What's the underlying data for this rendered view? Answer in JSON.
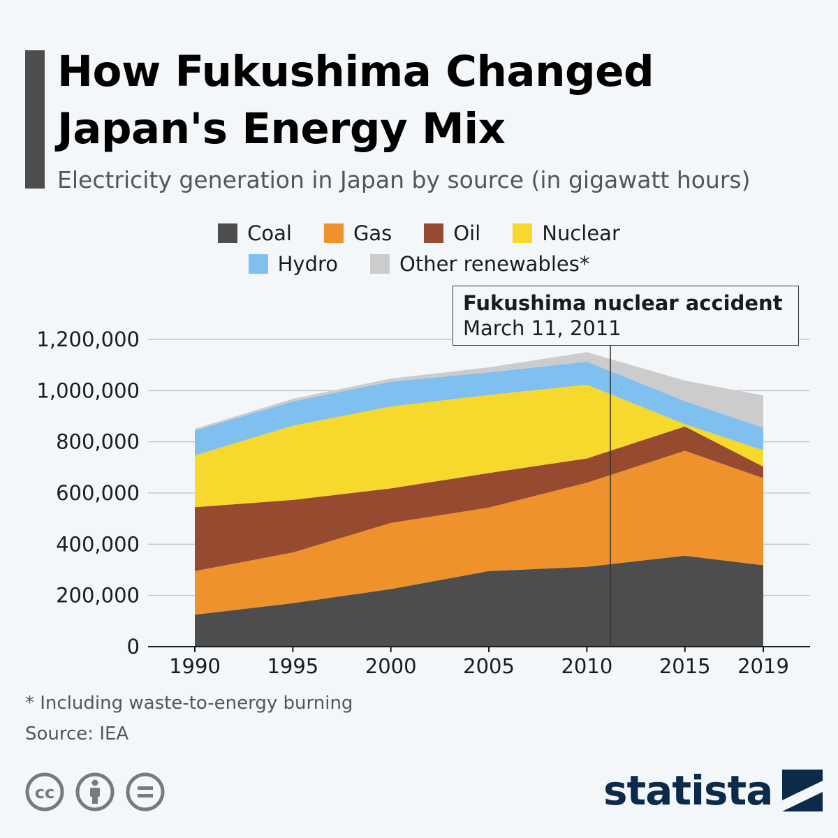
{
  "header": {
    "title_line1": "How Fukushima Changed",
    "title_line2": "Japan's Energy Mix",
    "subtitle": "Electricity generation in Japan by source (in gigawatt hours)"
  },
  "legend": {
    "row1": [
      {
        "label": "Coal",
        "color": "#4d4d4d"
      },
      {
        "label": "Gas",
        "color": "#f0922b"
      },
      {
        "label": "Oil",
        "color": "#964a30"
      },
      {
        "label": "Nuclear",
        "color": "#f7d92e"
      }
    ],
    "row2": [
      {
        "label": "Hydro",
        "color": "#7fc0f0"
      },
      {
        "label": "Other renewables*",
        "color": "#cccccc"
      }
    ]
  },
  "annotation": {
    "title": "Fukushima nuclear accident",
    "date": "March 11, 2011",
    "x": 2011.2
  },
  "chart_data": {
    "type": "area",
    "stacked": true,
    "x": [
      1990,
      1995,
      2000,
      2005,
      2010,
      2015,
      2019
    ],
    "x_tick_labels": [
      "1990",
      "1995",
      "2000",
      "2005",
      "2010",
      "2015",
      "2019"
    ],
    "series": [
      {
        "name": "Coal",
        "color": "#4d4d4d",
        "values": [
          125000,
          170000,
          225000,
          295000,
          312000,
          355000,
          318000
        ]
      },
      {
        "name": "Gas",
        "color": "#f0922b",
        "values": [
          170000,
          198000,
          258000,
          248000,
          328000,
          410000,
          340000
        ]
      },
      {
        "name": "Oil",
        "color": "#964a30",
        "values": [
          250000,
          205000,
          135000,
          135000,
          95000,
          95000,
          45000
        ]
      },
      {
        "name": "Nuclear",
        "color": "#f7d92e",
        "values": [
          202000,
          290000,
          320000,
          305000,
          288000,
          9000,
          64000
        ]
      },
      {
        "name": "Hydro",
        "color": "#7fc0f0",
        "values": [
          97000,
          95000,
          97000,
          88000,
          90000,
          90000,
          88000
        ]
      },
      {
        "name": "Other renewables*",
        "color": "#cccccc",
        "values": [
          7000,
          10000,
          12000,
          20000,
          37000,
          80000,
          126000
        ]
      }
    ],
    "yticks": [
      0,
      200000,
      400000,
      600000,
      800000,
      1000000,
      1200000
    ],
    "ytick_labels": [
      "0",
      "200,000",
      "400,000",
      "600,000",
      "800,000",
      "1,000,000",
      "1,200,000"
    ],
    "ylim": [
      0,
      1200000
    ],
    "grid": true
  },
  "footer": {
    "footnote": "* Including waste-to-energy burning",
    "source": "Source: IEA",
    "brand": "statista",
    "license_icons": [
      "creative-commons-icon",
      "attribution-person-icon",
      "no-derivatives-equals-icon"
    ]
  }
}
